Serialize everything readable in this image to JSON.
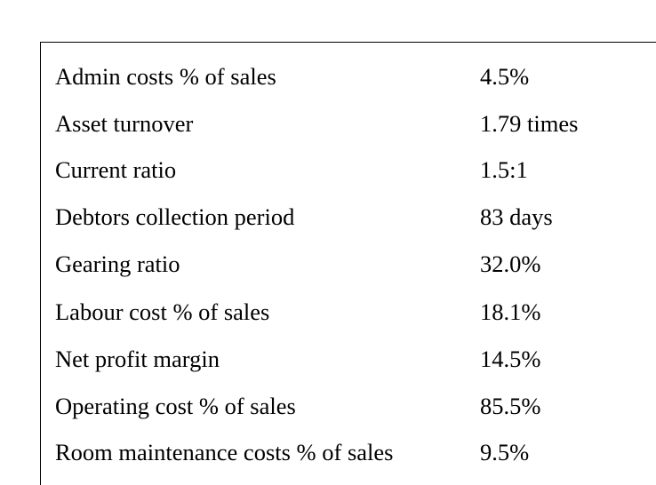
{
  "ratios": [
    {
      "label": "Admin costs % of sales",
      "value": "4.5%"
    },
    {
      "label": "Asset turnover",
      "value": "1.79 times"
    },
    {
      "label": "Current ratio",
      "value": "1.5:1"
    },
    {
      "label": "Debtors collection period",
      "value": "83 days"
    },
    {
      "label": "Gearing ratio",
      "value": "32.0%"
    },
    {
      "label": "Labour cost % of sales",
      "value": "18.1%"
    },
    {
      "label": "Net profit margin",
      "value": "14.5%"
    },
    {
      "label": "Operating cost % of sales",
      "value": "85.5%"
    },
    {
      "label": "Room maintenance costs % of sales",
      "value": "9.5%"
    }
  ]
}
